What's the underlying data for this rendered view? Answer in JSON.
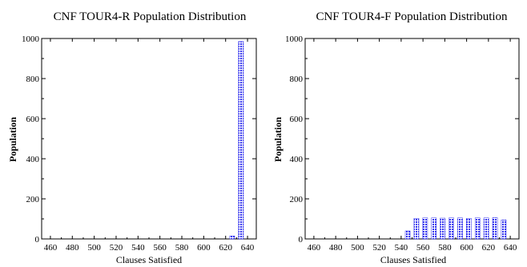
{
  "chart_data": [
    {
      "type": "bar",
      "title": "CNF TOUR4-R Population Distribution",
      "xlabel": "Clauses Satisfied",
      "ylabel": "Population",
      "xlim": [
        452,
        648
      ],
      "ylim": [
        0,
        1000
      ],
      "xticks": [
        460,
        480,
        500,
        520,
        540,
        560,
        580,
        600,
        620,
        640
      ],
      "yticks": [
        0,
        200,
        400,
        600,
        800,
        1000
      ],
      "bar_color": "#3333ee",
      "x": [
        626,
        634
      ],
      "values": [
        15,
        985
      ]
    },
    {
      "type": "bar",
      "title": "CNF TOUR4-F Population Distribution",
      "xlabel": "Clauses Satisfied",
      "ylabel": "Population",
      "xlim": [
        452,
        648
      ],
      "ylim": [
        0,
        1000
      ],
      "xticks": [
        460,
        480,
        500,
        520,
        540,
        560,
        580,
        600,
        620,
        640
      ],
      "yticks": [
        0,
        200,
        400,
        600,
        800,
        1000
      ],
      "bar_color": "#3333ee",
      "x": [
        546,
        554,
        562,
        570,
        578,
        586,
        594,
        602,
        610,
        618,
        626,
        634
      ],
      "values": [
        40,
        103,
        105,
        105,
        104,
        105,
        105,
        103,
        105,
        105,
        106,
        95
      ]
    }
  ]
}
